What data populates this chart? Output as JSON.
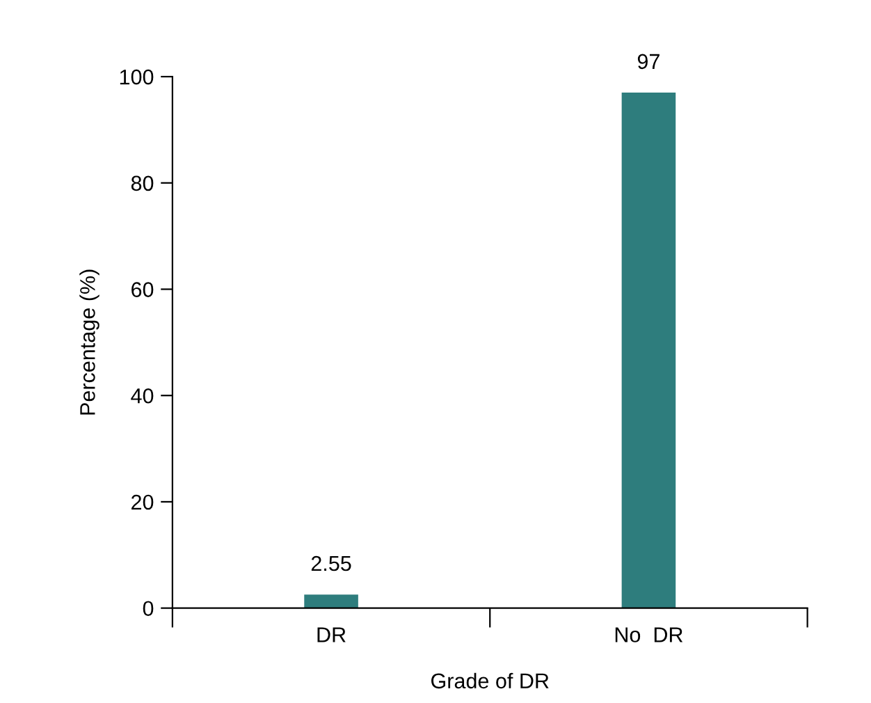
{
  "chart_data": {
    "type": "bar",
    "xlabel": "Grade of DR",
    "ylabel": "Percentage (%)",
    "categories": [
      "DR",
      "No  DR"
    ],
    "values": [
      2.55,
      97
    ],
    "color": "#2e7d7d",
    "data_labels": true,
    "ylim": [
      0,
      100
    ],
    "yticks": [
      0,
      20,
      40,
      60,
      80,
      100
    ],
    "grid": false,
    "legend": false
  }
}
